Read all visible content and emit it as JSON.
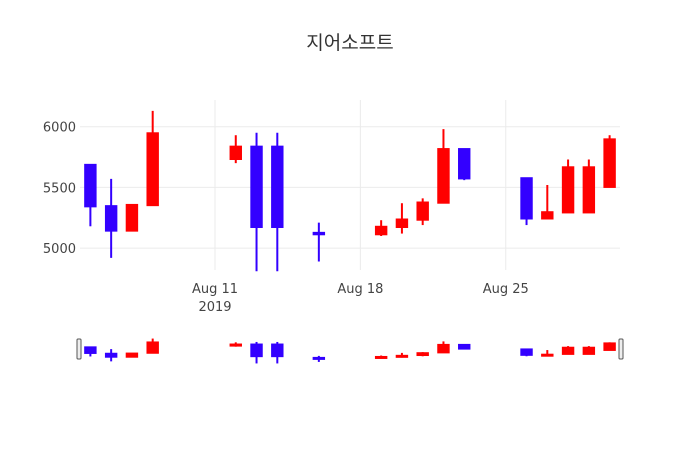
{
  "chart_data": {
    "type": "candlestick",
    "title": "지어소프트",
    "increasing_color": "#ff0000",
    "decreasing_color": "#3300ff",
    "xlabel": "",
    "ylabel": "",
    "x_ticks": [
      {
        "date": "2019-08-11",
        "label": "Aug 11",
        "sublabel": "2019"
      },
      {
        "date": "2019-08-18",
        "label": "Aug 18",
        "sublabel": ""
      },
      {
        "date": "2019-08-25",
        "label": "Aug 25",
        "sublabel": ""
      }
    ],
    "y_ticks": [
      5000,
      5500,
      6000
    ],
    "xlim": [
      "2019-08-04T12:00",
      "2019-08-30T12:00"
    ],
    "ylim": [
      4820,
      6220
    ],
    "grid": true,
    "rangeslider": true,
    "candles": [
      {
        "date": "2019-08-05",
        "open": 5690,
        "high": 5690,
        "low": 5180,
        "close": 5340
      },
      {
        "date": "2019-08-06",
        "open": 5350,
        "high": 5570,
        "low": 4920,
        "close": 5140
      },
      {
        "date": "2019-08-07",
        "open": 5140,
        "high": 5360,
        "low": 5140,
        "close": 5360
      },
      {
        "date": "2019-08-08",
        "open": 5350,
        "high": 6130,
        "low": 5350,
        "close": 5950
      },
      {
        "date": "2019-08-12",
        "open": 5730,
        "high": 5930,
        "low": 5700,
        "close": 5840
      },
      {
        "date": "2019-08-13",
        "open": 5840,
        "high": 5950,
        "low": 4810,
        "close": 5170
      },
      {
        "date": "2019-08-14",
        "open": 5840,
        "high": 5950,
        "low": 4810,
        "close": 5170
      },
      {
        "date": "2019-08-16",
        "open": 5130,
        "high": 5210,
        "low": 4890,
        "close": 5110
      },
      {
        "date": "2019-08-19",
        "open": 5110,
        "high": 5230,
        "low": 5100,
        "close": 5180
      },
      {
        "date": "2019-08-20",
        "open": 5170,
        "high": 5370,
        "low": 5120,
        "close": 5240
      },
      {
        "date": "2019-08-21",
        "open": 5230,
        "high": 5410,
        "low": 5190,
        "close": 5380
      },
      {
        "date": "2019-08-22",
        "open": 5370,
        "high": 5980,
        "low": 5370,
        "close": 5820
      },
      {
        "date": "2019-08-23",
        "open": 5820,
        "high": 5820,
        "low": 5560,
        "close": 5570
      },
      {
        "date": "2019-08-26",
        "open": 5580,
        "high": 5580,
        "low": 5190,
        "close": 5240
      },
      {
        "date": "2019-08-27",
        "open": 5240,
        "high": 5520,
        "low": 5240,
        "close": 5300
      },
      {
        "date": "2019-08-28",
        "open": 5290,
        "high": 5730,
        "low": 5290,
        "close": 5670
      },
      {
        "date": "2019-08-29",
        "open": 5290,
        "high": 5730,
        "low": 5290,
        "close": 5670
      },
      {
        "date": "2019-08-30",
        "open": 5500,
        "high": 5930,
        "low": 5500,
        "close": 5900
      }
    ]
  }
}
